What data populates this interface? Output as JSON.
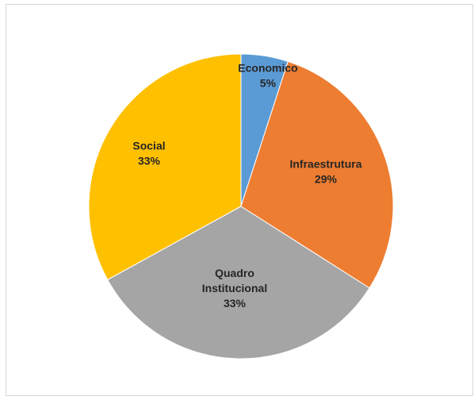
{
  "chart_data": {
    "type": "pie",
    "title": "",
    "slices": [
      {
        "name": "Economico",
        "value": 5,
        "label_lines": [
          "Economico",
          "5%"
        ],
        "color": "#5B9BD5"
      },
      {
        "name": "Infraestrutura",
        "value": 29,
        "label_lines": [
          "Infraestrutura",
          "29%"
        ],
        "color": "#ED7D31"
      },
      {
        "name": "Quadro Institucional",
        "value": 33,
        "label_lines": [
          "Quadro",
          "Institucional",
          "33%"
        ],
        "color": "#A5A5A5"
      },
      {
        "name": "Social",
        "value": 33,
        "label_lines": [
          "Social",
          "33%"
        ],
        "color": "#FFC000"
      }
    ],
    "start_angle_deg": 0,
    "direction": "clockwise",
    "legend": "none"
  }
}
